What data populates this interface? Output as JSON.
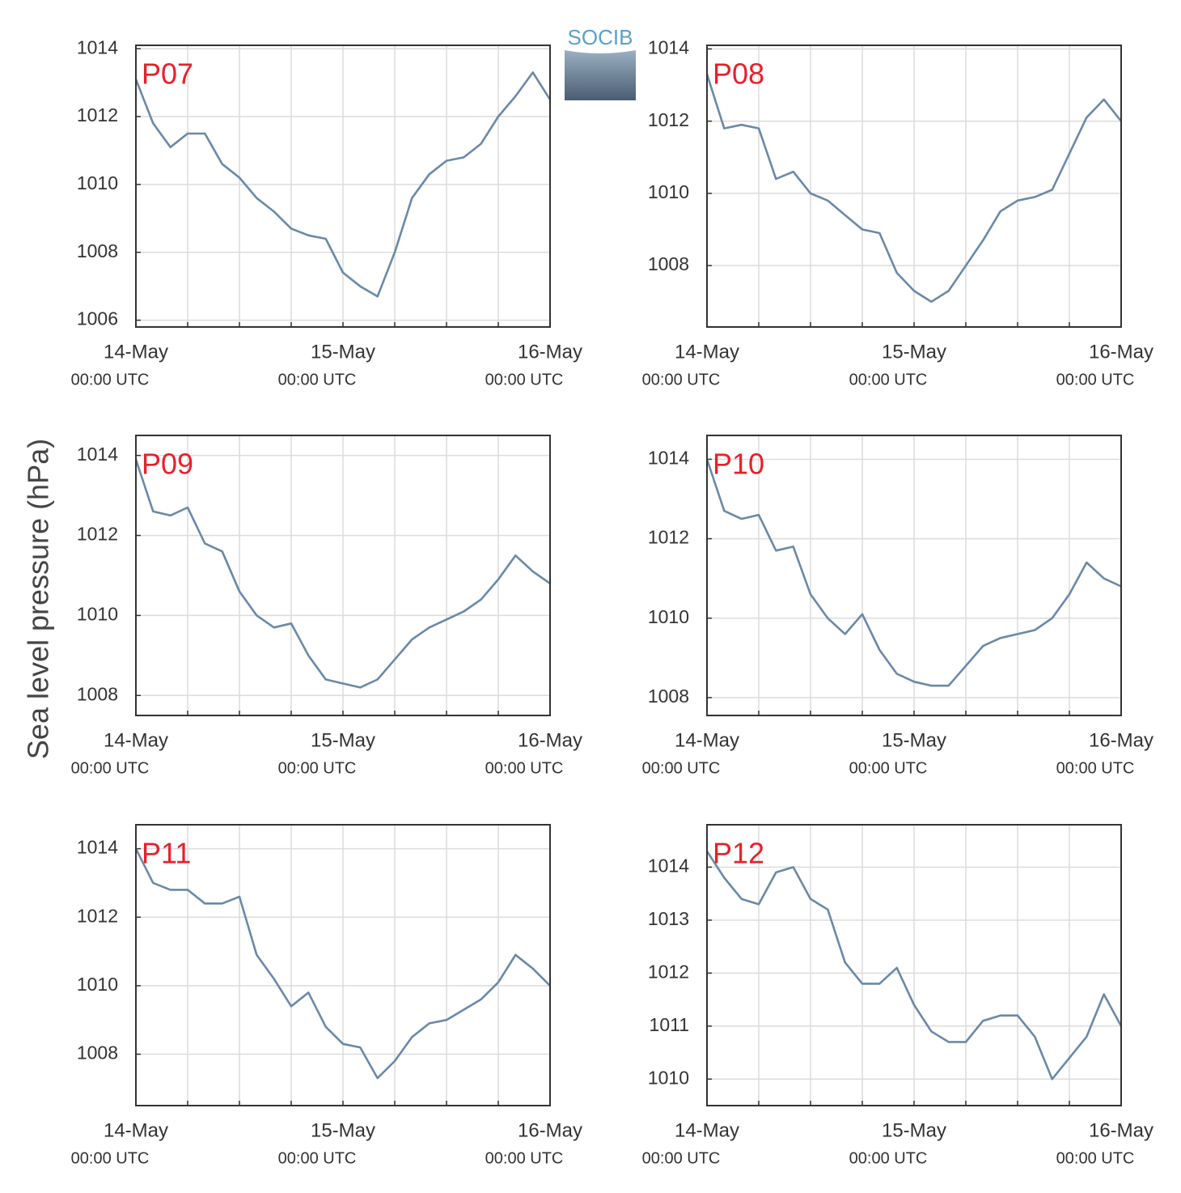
{
  "ylabel": "Sea level pressure (hPa)",
  "logo": "SOCIB",
  "chart_data": [
    {
      "type": "line",
      "title": "P07",
      "x": [
        "14-May 00:00",
        "14-May 02:00",
        "14-May 04:00",
        "14-May 06:00",
        "14-May 08:00",
        "14-May 10:00",
        "14-May 12:00",
        "14-May 14:00",
        "14-May 16:00",
        "14-May 18:00",
        "14-May 20:00",
        "14-May 22:00",
        "15-May 00:00",
        "15-May 02:00",
        "15-May 04:00",
        "15-May 06:00",
        "15-May 08:00",
        "15-May 10:00",
        "15-May 12:00",
        "15-May 14:00",
        "15-May 16:00",
        "15-May 18:00",
        "15-May 20:00",
        "15-May 22:00",
        "16-May 00:00"
      ],
      "series": [
        {
          "color": "#6a89a8",
          "values": [
            1013.1,
            1011.8,
            1011.1,
            1011.5,
            1011.5,
            1010.6,
            1010.2,
            1009.6,
            1009.2,
            1008.7,
            1008.5,
            1008.4,
            1007.4,
            1007.0,
            1006.7,
            1008.0,
            1009.6,
            1010.3,
            1010.7,
            1010.8,
            1011.2,
            1012.0,
            1012.6,
            1013.3,
            1012.5
          ]
        }
      ],
      "xlim": [
        "14-May 00:00",
        "16-May 00:00"
      ],
      "xticks": [
        {
          "value": "14-May 00:00",
          "label": "14-May",
          "sublabel": "00:00 UTC"
        },
        {
          "value": "14-May 06:00",
          "label": null
        },
        {
          "value": "14-May 12:00",
          "label": null
        },
        {
          "value": "14-May 18:00",
          "label": null
        },
        {
          "value": "15-May 00:00",
          "label": "15-May",
          "sublabel": "00:00 UTC"
        },
        {
          "value": "15-May 06:00",
          "label": null
        },
        {
          "value": "15-May 12:00",
          "label": null
        },
        {
          "value": "15-May 18:00",
          "label": null
        },
        {
          "value": "16-May 00:00",
          "label": "16-May",
          "sublabel": "00:00 UTC"
        }
      ],
      "ylim": [
        1005.8,
        1014.1
      ],
      "yticks": [
        1006,
        1008,
        1010,
        1012,
        1014
      ],
      "grid": true
    },
    {
      "type": "line",
      "title": "P08",
      "x": [
        "14-May 00:00",
        "14-May 02:00",
        "14-May 04:00",
        "14-May 06:00",
        "14-May 08:00",
        "14-May 10:00",
        "14-May 12:00",
        "14-May 14:00",
        "14-May 16:00",
        "14-May 18:00",
        "14-May 20:00",
        "14-May 22:00",
        "15-May 00:00",
        "15-May 02:00",
        "15-May 04:00",
        "15-May 06:00",
        "15-May 08:00",
        "15-May 10:00",
        "15-May 12:00",
        "15-May 14:00",
        "15-May 16:00",
        "15-May 18:00",
        "15-May 20:00",
        "15-May 22:00",
        "16-May 00:00"
      ],
      "series": [
        {
          "color": "#6a89a8",
          "values": [
            1013.3,
            1011.8,
            1011.9,
            1011.8,
            1010.4,
            1010.6,
            1010.0,
            1009.8,
            1009.4,
            1009.0,
            1008.9,
            1007.8,
            1007.3,
            1007.0,
            1007.3,
            1008.0,
            1008.7,
            1009.5,
            1009.8,
            1009.9,
            1010.1,
            1011.1,
            1012.1,
            1012.6,
            1012.0
          ]
        }
      ],
      "xlim": [
        "14-May 00:00",
        "16-May 00:00"
      ],
      "xticks": [
        {
          "value": "14-May 00:00",
          "label": "14-May",
          "sublabel": "00:00 UTC"
        },
        {
          "value": "14-May 06:00",
          "label": null
        },
        {
          "value": "14-May 12:00",
          "label": null
        },
        {
          "value": "14-May 18:00",
          "label": null
        },
        {
          "value": "15-May 00:00",
          "label": "15-May",
          "sublabel": "00:00 UTC"
        },
        {
          "value": "15-May 06:00",
          "label": null
        },
        {
          "value": "15-May 12:00",
          "label": null
        },
        {
          "value": "15-May 18:00",
          "label": null
        },
        {
          "value": "16-May 00:00",
          "label": "16-May",
          "sublabel": "00:00 UTC"
        }
      ],
      "ylim": [
        1006.3,
        1014.1
      ],
      "yticks": [
        1008,
        1010,
        1012,
        1014
      ],
      "grid": true
    },
    {
      "type": "line",
      "title": "P09",
      "x": [
        "14-May 00:00",
        "14-May 02:00",
        "14-May 04:00",
        "14-May 06:00",
        "14-May 08:00",
        "14-May 10:00",
        "14-May 12:00",
        "14-May 14:00",
        "14-May 16:00",
        "14-May 18:00",
        "14-May 20:00",
        "14-May 22:00",
        "15-May 00:00",
        "15-May 02:00",
        "15-May 04:00",
        "15-May 06:00",
        "15-May 08:00",
        "15-May 10:00",
        "15-May 12:00",
        "15-May 14:00",
        "15-May 16:00",
        "15-May 18:00",
        "15-May 20:00",
        "15-May 22:00",
        "16-May 00:00"
      ],
      "series": [
        {
          "color": "#6a89a8",
          "values": [
            1013.9,
            1012.6,
            1012.5,
            1012.7,
            1011.8,
            1011.6,
            1010.6,
            1010.0,
            1009.7,
            1009.8,
            1009.0,
            1008.4,
            1008.3,
            1008.2,
            1008.4,
            1008.9,
            1009.4,
            1009.7,
            1009.9,
            1010.1,
            1010.4,
            1010.9,
            1011.5,
            1011.1,
            1010.8
          ]
        }
      ],
      "xlim": [
        "14-May 00:00",
        "16-May 00:00"
      ],
      "xticks": [
        {
          "value": "14-May 00:00",
          "label": "14-May",
          "sublabel": "00:00 UTC"
        },
        {
          "value": "14-May 06:00",
          "label": null
        },
        {
          "value": "14-May 12:00",
          "label": null
        },
        {
          "value": "14-May 18:00",
          "label": null
        },
        {
          "value": "15-May 00:00",
          "label": "15-May",
          "sublabel": "00:00 UTC"
        },
        {
          "value": "15-May 06:00",
          "label": null
        },
        {
          "value": "15-May 12:00",
          "label": null
        },
        {
          "value": "15-May 18:00",
          "label": null
        },
        {
          "value": "16-May 00:00",
          "label": "16-May",
          "sublabel": "00:00 UTC"
        }
      ],
      "ylim": [
        1007.5,
        1014.5
      ],
      "yticks": [
        1008,
        1010,
        1012,
        1014
      ],
      "grid": true
    },
    {
      "type": "line",
      "title": "P10",
      "x": [
        "14-May 00:00",
        "14-May 02:00",
        "14-May 04:00",
        "14-May 06:00",
        "14-May 08:00",
        "14-May 10:00",
        "14-May 12:00",
        "14-May 14:00",
        "14-May 16:00",
        "14-May 18:00",
        "14-May 20:00",
        "14-May 22:00",
        "15-May 00:00",
        "15-May 02:00",
        "15-May 04:00",
        "15-May 06:00",
        "15-May 08:00",
        "15-May 10:00",
        "15-May 12:00",
        "15-May 14:00",
        "15-May 16:00",
        "15-May 18:00",
        "15-May 20:00",
        "15-May 22:00",
        "16-May 00:00"
      ],
      "series": [
        {
          "color": "#6a89a8",
          "values": [
            1014.0,
            1012.7,
            1012.5,
            1012.6,
            1011.7,
            1011.8,
            1010.6,
            1010.0,
            1009.6,
            1010.1,
            1009.2,
            1008.6,
            1008.4,
            1008.3,
            1008.3,
            1008.8,
            1009.3,
            1009.5,
            1009.6,
            1009.7,
            1010.0,
            1010.6,
            1011.4,
            1011.0,
            1010.8
          ]
        }
      ],
      "xlim": [
        "14-May 00:00",
        "16-May 00:00"
      ],
      "xticks": [
        {
          "value": "14-May 00:00",
          "label": "14-May",
          "sublabel": "00:00 UTC"
        },
        {
          "value": "14-May 06:00",
          "label": null
        },
        {
          "value": "14-May 12:00",
          "label": null
        },
        {
          "value": "14-May 18:00",
          "label": null
        },
        {
          "value": "15-May 00:00",
          "label": "15-May",
          "sublabel": "00:00 UTC"
        },
        {
          "value": "15-May 06:00",
          "label": null
        },
        {
          "value": "15-May 12:00",
          "label": null
        },
        {
          "value": "15-May 18:00",
          "label": null
        },
        {
          "value": "16-May 00:00",
          "label": "16-May",
          "sublabel": "00:00 UTC"
        }
      ],
      "ylim": [
        1007.55,
        1014.6
      ],
      "yticks": [
        1008,
        1010,
        1012,
        1014
      ],
      "grid": true
    },
    {
      "type": "line",
      "title": "P11",
      "x": [
        "14-May 00:00",
        "14-May 02:00",
        "14-May 04:00",
        "14-May 06:00",
        "14-May 08:00",
        "14-May 10:00",
        "14-May 12:00",
        "14-May 14:00",
        "14-May 16:00",
        "14-May 18:00",
        "14-May 20:00",
        "14-May 22:00",
        "15-May 00:00",
        "15-May 02:00",
        "15-May 04:00",
        "15-May 06:00",
        "15-May 08:00",
        "15-May 10:00",
        "15-May 12:00",
        "15-May 14:00",
        "15-May 16:00",
        "15-May 18:00",
        "15-May 20:00",
        "15-May 22:00",
        "16-May 00:00"
      ],
      "series": [
        {
          "color": "#6a89a8",
          "values": [
            1014.0,
            1013.0,
            1012.8,
            1012.8,
            1012.4,
            1012.4,
            1012.6,
            1010.9,
            1010.2,
            1009.4,
            1009.8,
            1008.8,
            1008.3,
            1008.2,
            1007.3,
            1007.8,
            1008.5,
            1008.9,
            1009.0,
            1009.3,
            1009.6,
            1010.1,
            1010.9,
            1010.5,
            1010.0
          ]
        }
      ],
      "xlim": [
        "14-May 00:00",
        "16-May 00:00"
      ],
      "xticks": [
        {
          "value": "14-May 00:00",
          "label": "14-May",
          "sublabel": "00:00 UTC"
        },
        {
          "value": "14-May 06:00",
          "label": null
        },
        {
          "value": "14-May 12:00",
          "label": null
        },
        {
          "value": "14-May 18:00",
          "label": null
        },
        {
          "value": "15-May 00:00",
          "label": "15-May",
          "sublabel": "00:00 UTC"
        },
        {
          "value": "15-May 06:00",
          "label": null
        },
        {
          "value": "15-May 12:00",
          "label": null
        },
        {
          "value": "15-May 18:00",
          "label": null
        },
        {
          "value": "16-May 00:00",
          "label": "16-May",
          "sublabel": "00:00 UTC"
        }
      ],
      "ylim": [
        1006.5,
        1014.7
      ],
      "yticks": [
        1008,
        1010,
        1012,
        1014
      ],
      "grid": true
    },
    {
      "type": "line",
      "title": "P12",
      "x": [
        "14-May 00:00",
        "14-May 02:00",
        "14-May 04:00",
        "14-May 06:00",
        "14-May 08:00",
        "14-May 10:00",
        "14-May 12:00",
        "14-May 14:00",
        "14-May 16:00",
        "14-May 18:00",
        "14-May 20:00",
        "14-May 22:00",
        "15-May 00:00",
        "15-May 02:00",
        "15-May 04:00",
        "15-May 06:00",
        "15-May 08:00",
        "15-May 10:00",
        "15-May 12:00",
        "15-May 14:00",
        "15-May 16:00",
        "15-May 18:00",
        "15-May 20:00",
        "15-May 22:00",
        "16-May 00:00"
      ],
      "series": [
        {
          "color": "#6a89a8",
          "values": [
            1014.3,
            1013.8,
            1013.4,
            1013.3,
            1013.9,
            1014.0,
            1013.4,
            1013.2,
            1012.2,
            1011.8,
            1011.8,
            1012.1,
            1011.4,
            1010.9,
            1010.7,
            1010.7,
            1011.1,
            1011.2,
            1011.2,
            1010.8,
            1010.0,
            1010.4,
            1010.8,
            1011.6,
            1011.0
          ]
        }
      ],
      "xlim": [
        "14-May 00:00",
        "16-May 00:00"
      ],
      "xticks": [
        {
          "value": "14-May 00:00",
          "label": "14-May",
          "sublabel": "00:00 UTC"
        },
        {
          "value": "14-May 06:00",
          "label": null
        },
        {
          "value": "14-May 12:00",
          "label": null
        },
        {
          "value": "14-May 18:00",
          "label": null
        },
        {
          "value": "15-May 00:00",
          "label": "15-May",
          "sublabel": "00:00 UTC"
        },
        {
          "value": "15-May 06:00",
          "label": null
        },
        {
          "value": "15-May 12:00",
          "label": null
        },
        {
          "value": "15-May 18:00",
          "label": null
        },
        {
          "value": "16-May 00:00",
          "label": "16-May",
          "sublabel": "00:00 UTC"
        }
      ],
      "ylim": [
        1009.5,
        1014.8
      ],
      "yticks": [
        1010,
        1011,
        1012,
        1013,
        1014
      ],
      "grid": true
    }
  ]
}
